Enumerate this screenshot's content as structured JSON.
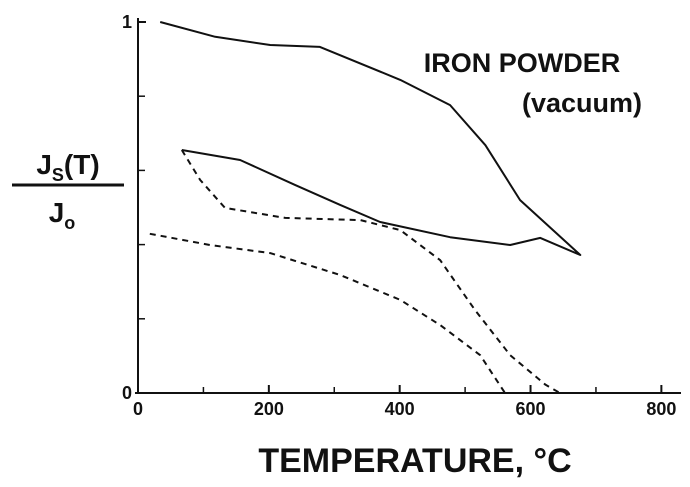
{
  "chart_data": {
    "type": "line",
    "annotations": [
      "IRON POWDER",
      "(vacuum)"
    ],
    "xlabel": "TEMPERATURE, °C",
    "ylabel": {
      "numerator": {
        "base": "J",
        "sub": "S",
        "rest": "(T)"
      },
      "denominator": {
        "base": "J",
        "sub": "o"
      }
    },
    "xlim": [
      0,
      830
    ],
    "ylim": [
      0,
      1
    ],
    "xticks": [
      0,
      200,
      400,
      600,
      800
    ],
    "xminor_ticks": [
      100,
      300,
      500,
      700
    ],
    "yticks": [
      0,
      1
    ],
    "yminor_ticks": [
      0.2,
      0.4,
      0.6,
      0.8
    ],
    "series": [
      {
        "color": "#111111",
        "dashed": false,
        "x": [
          34,
          118,
          202,
          278,
          401,
          477,
          531,
          584,
          676,
          615,
          569,
          477,
          370,
          309,
          240,
          156,
          67
        ],
        "values": [
          1.0,
          0.96,
          0.938,
          0.933,
          0.844,
          0.776,
          0.668,
          0.52,
          0.372,
          0.418,
          0.399,
          0.42,
          0.461,
          0.507,
          0.561,
          0.628,
          0.655
        ]
      },
      {
        "color": "#111111",
        "dashed": true,
        "x": [
          67,
          95,
          133,
          225,
          340,
          401,
          462,
          515,
          569,
          623,
          645
        ],
        "values": [
          0.655,
          0.574,
          0.499,
          0.472,
          0.466,
          0.439,
          0.358,
          0.224,
          0.102,
          0.022,
          0
        ]
      },
      {
        "color": "#111111",
        "dashed": true,
        "x": [
          18,
          110,
          202,
          309,
          401,
          462,
          523,
          561
        ],
        "values": [
          0.429,
          0.399,
          0.377,
          0.318,
          0.251,
          0.183,
          0.102,
          0
        ]
      }
    ]
  }
}
